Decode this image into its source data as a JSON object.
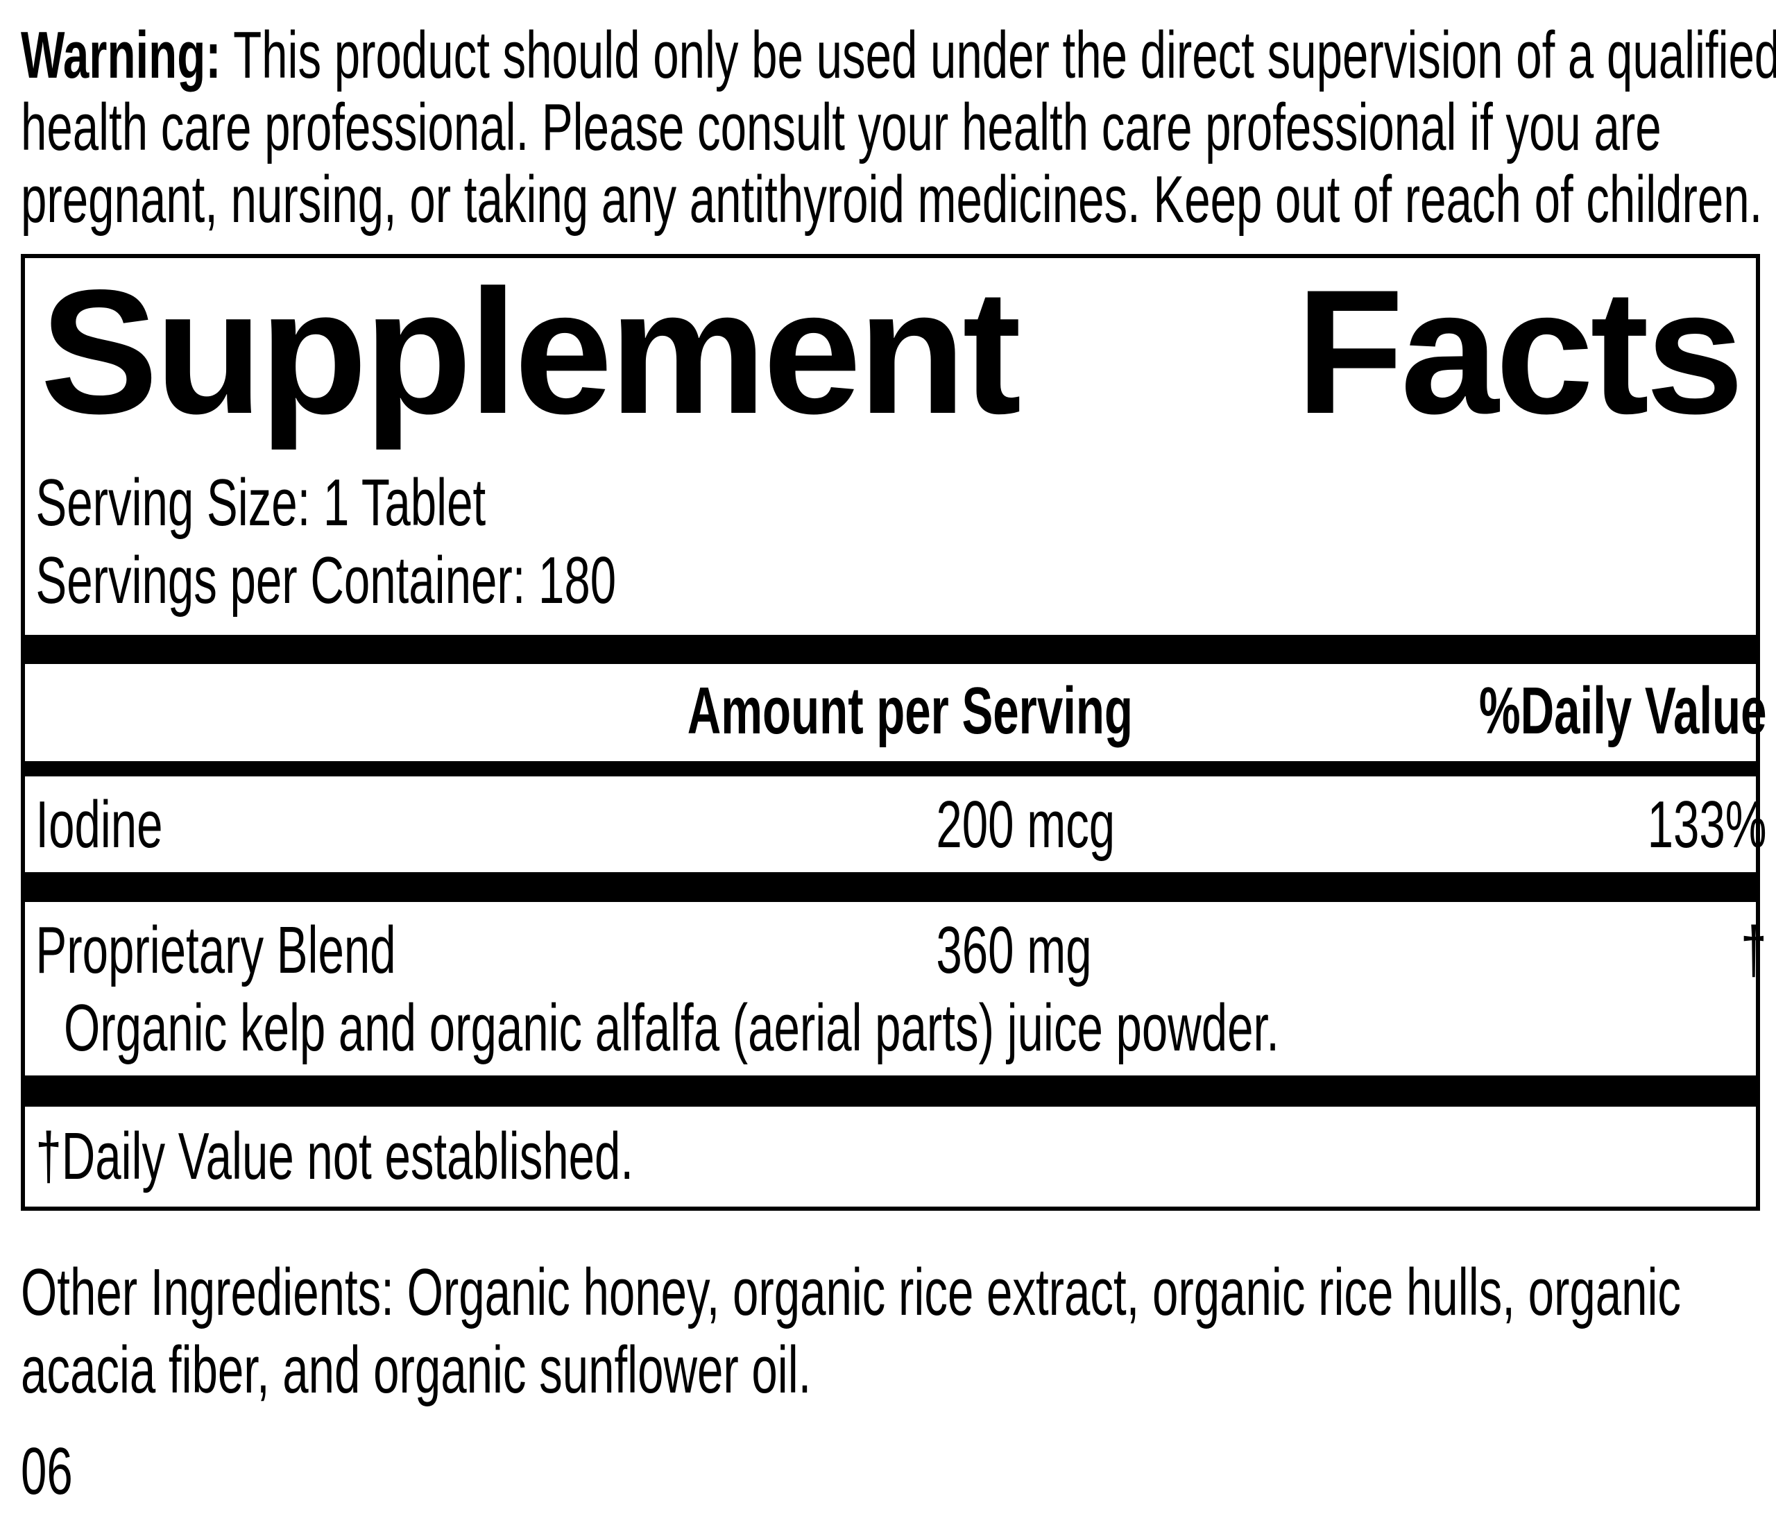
{
  "warning": {
    "label": "Warning:",
    "text": " This product should only be used under the direct supervision of a qualified health care professional. Please consult your health care professional if you are pregnant, nursing, or taking any antithyroid medicines. Keep out of reach of children."
  },
  "supplement_facts": {
    "title_word1": "Supplement",
    "title_word2": "Facts",
    "serving_size": "Serving Size: 1 Tablet",
    "servings_per_container": "Servings per Container: 180",
    "columns": {
      "amount": "Amount per Serving",
      "daily_value": "%Daily Value"
    },
    "rows": [
      {
        "name": "Iodine",
        "amount": "200 mcg",
        "daily_value": "133%"
      },
      {
        "name": "Proprietary Blend",
        "amount": "360 mg",
        "daily_value": "†",
        "description": "Organic kelp and organic alfalfa (aerial parts) juice powder."
      }
    ],
    "footnote": "†Daily Value not established."
  },
  "other_ingredients": "Other Ingredients: Organic honey, organic rice extract, organic rice hulls, organic acacia fiber, and organic sunflower oil.",
  "footer_code": "06",
  "colors": {
    "text": "#000000",
    "background": "#ffffff",
    "rule": "#000000"
  }
}
